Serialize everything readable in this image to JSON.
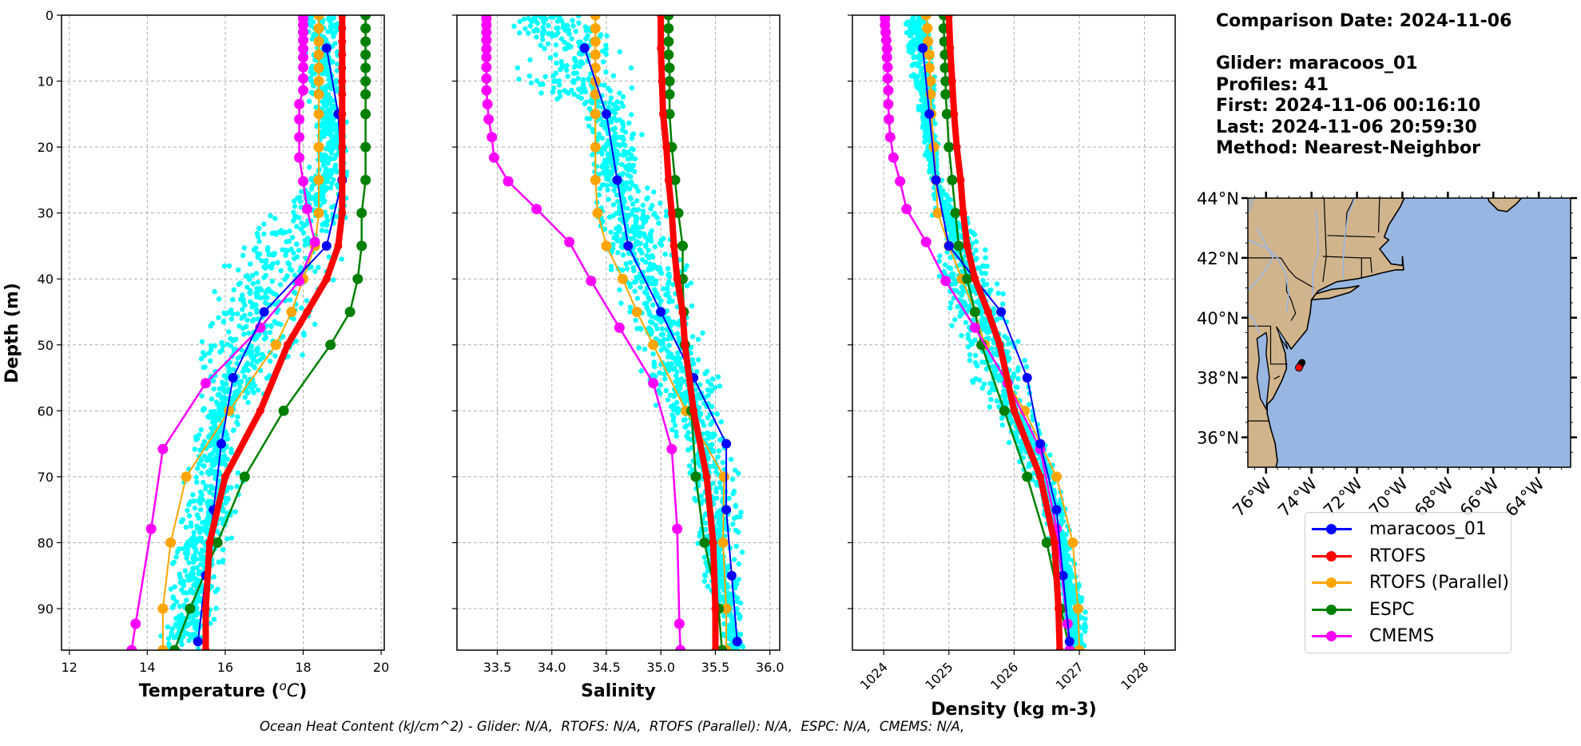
{
  "info": {
    "comparison_date": "Comparison Date: 2024-11-06",
    "glider": "Glider: maracoos_01",
    "profiles": "Profiles: 41",
    "first": "First: 2024-11-06 00:16:10",
    "last": "Last: 2024-11-06 20:59:30",
    "method": "Method: Nearest-Neighbor"
  },
  "footer": "Ocean Heat Content (kJ/cm^2) - Glider: N/A,  RTOFS: N/A,  RTOFS (Parallel): N/A,  ESPC: N/A,  CMEMS: N/A,",
  "legend": [
    {
      "label": "maracoos_01",
      "color": "#0000ff"
    },
    {
      "label": "RTOFS",
      "color": "#ff0000"
    },
    {
      "label": "RTOFS (Parallel)",
      "color": "#ffa500"
    },
    {
      "label": "ESPC",
      "color": "#008000"
    },
    {
      "label": "CMEMS",
      "color": "#ff00ff"
    }
  ],
  "colors": {
    "glider_scatter": "#00ffff",
    "land": "#d2b48c",
    "ocean": "#97b6e1",
    "grid": "#b0b0b0"
  },
  "chart_data": [
    {
      "type": "line",
      "panel": "temperature",
      "xlabel": "Temperature (°C)",
      "ylabel": "Depth (m)",
      "xlim": [
        11.8,
        20.08
      ],
      "ylim": [
        96.3,
        0
      ],
      "xticks": [
        12,
        14,
        16,
        18,
        20
      ],
      "yticks": [
        0,
        10,
        20,
        30,
        40,
        50,
        60,
        70,
        80,
        90
      ],
      "grid": true,
      "scatter_envelope": {
        "name": "glider profiles",
        "depth": [
          0,
          10,
          20,
          30,
          34,
          40,
          45,
          50,
          55,
          60,
          65,
          70,
          75,
          80,
          85,
          90,
          96
        ],
        "min": [
          17.9,
          17.9,
          18.4,
          17.2,
          15.8,
          15.4,
          15.1,
          15.1,
          15.2,
          15.2,
          15.1,
          14.9,
          14.8,
          14.6,
          14.5,
          14.3,
          14.1
        ],
        "max": [
          19.0,
          19.1,
          19.2,
          19.3,
          19.3,
          19.2,
          18.7,
          18.2,
          17.6,
          16.5,
          16.3,
          16.6,
          16.4,
          16.2,
          16.1,
          15.9,
          15.6
        ]
      },
      "series": [
        {
          "name": "maracoos_01",
          "depth": [
            5,
            15,
            25,
            35,
            45,
            55,
            65,
            75,
            85,
            95
          ],
          "values": [
            18.6,
            18.9,
            19.0,
            18.6,
            17.0,
            16.2,
            15.9,
            15.7,
            15.5,
            15.3
          ]
        },
        {
          "name": "RTOFS",
          "depth": [
            0,
            2,
            4,
            6,
            8,
            10,
            12,
            15,
            20,
            25,
            30,
            35,
            40,
            45,
            50,
            60,
            70,
            80,
            90,
            96.3
          ],
          "values": [
            19.0,
            19.0,
            19.0,
            19.0,
            19.0,
            19.0,
            19.0,
            19.0,
            19.0,
            19.0,
            19.0,
            18.9,
            18.6,
            18.1,
            17.6,
            16.9,
            16.0,
            15.6,
            15.5,
            15.5
          ]
        },
        {
          "name": "RTOFS (Parallel)",
          "depth": [
            0,
            2,
            4,
            6,
            8,
            10,
            12,
            15,
            20,
            25,
            30,
            35,
            40,
            45,
            50,
            60,
            70,
            80,
            90,
            96.3
          ],
          "values": [
            18.4,
            18.4,
            18.4,
            18.4,
            18.4,
            18.4,
            18.4,
            18.4,
            18.4,
            18.4,
            18.4,
            18.3,
            18.0,
            17.7,
            17.3,
            16.1,
            15.0,
            14.6,
            14.4,
            14.4
          ]
        },
        {
          "name": "ESPC",
          "depth": [
            0,
            2,
            4,
            6,
            8,
            10,
            12,
            15,
            20,
            25,
            30,
            35,
            40,
            45,
            50,
            60,
            70,
            80,
            90,
            96.3
          ],
          "values": [
            19.6,
            19.6,
            19.6,
            19.6,
            19.6,
            19.6,
            19.6,
            19.6,
            19.6,
            19.6,
            19.5,
            19.5,
            19.4,
            19.2,
            18.7,
            17.5,
            16.5,
            15.8,
            15.1,
            14.7
          ]
        },
        {
          "name": "CMEMS",
          "depth": [
            0,
            0.5,
            1.5,
            2.6,
            3.8,
            5.1,
            6.4,
            7.9,
            9.6,
            11.4,
            13.5,
            15.8,
            18.5,
            21.6,
            25.2,
            29.4,
            34.4,
            40.3,
            47.4,
            55.8,
            65.8,
            77.9,
            92.3,
            96.3
          ],
          "values": [
            18.0,
            18.0,
            18.0,
            18.0,
            18.0,
            18.0,
            18.0,
            18.0,
            18.0,
            18.0,
            17.9,
            17.9,
            17.9,
            17.9,
            18.0,
            18.1,
            18.3,
            17.9,
            16.9,
            15.5,
            14.4,
            14.1,
            13.7,
            13.6
          ]
        }
      ]
    },
    {
      "type": "line",
      "panel": "salinity",
      "xlabel": "Salinity",
      "ylabel": "",
      "xlim": [
        33.13,
        36.09
      ],
      "ylim": [
        96.3,
        0
      ],
      "xticks": [
        33.5,
        34.0,
        34.5,
        35.0,
        35.5,
        36.0
      ],
      "xtick_labels": [
        "33.5",
        "34.0",
        "34.5",
        "35.0",
        "35.5",
        "36.0"
      ],
      "yticks": [
        0,
        10,
        20,
        30,
        40,
        50,
        60,
        70,
        80,
        90
      ],
      "grid": true,
      "scatter_envelope": {
        "name": "glider profiles",
        "depth": [
          0,
          5,
          10,
          15,
          20,
          25,
          30,
          35,
          40,
          45,
          50,
          55,
          60,
          65,
          70,
          75,
          80,
          85,
          90,
          96
        ],
        "min": [
          33.5,
          33.5,
          33.6,
          34.2,
          34.3,
          34.3,
          34.3,
          34.4,
          34.5,
          34.6,
          34.7,
          34.8,
          34.95,
          35.1,
          35.2,
          35.3,
          35.3,
          35.35,
          35.5,
          35.6
        ],
        "max": [
          34.5,
          34.8,
          34.8,
          34.85,
          34.85,
          34.9,
          35.1,
          35.2,
          35.3,
          35.4,
          35.5,
          35.55,
          35.6,
          35.65,
          35.75,
          35.75,
          35.75,
          35.75,
          35.75,
          35.76
        ]
      },
      "series": [
        {
          "name": "maracoos_01",
          "depth": [
            5,
            15,
            25,
            35,
            45,
            55,
            65,
            75,
            85,
            95
          ],
          "values": [
            34.3,
            34.5,
            34.6,
            34.7,
            35.0,
            35.3,
            35.6,
            35.6,
            35.65,
            35.7
          ]
        },
        {
          "name": "RTOFS",
          "depth": [
            0,
            5,
            10,
            15,
            20,
            25,
            30,
            35,
            40,
            45,
            50,
            60,
            70,
            80,
            90,
            96.3
          ],
          "values": [
            35.0,
            35.0,
            35.01,
            35.02,
            35.05,
            35.07,
            35.1,
            35.12,
            35.15,
            35.2,
            35.22,
            35.3,
            35.42,
            35.48,
            35.5,
            35.5
          ]
        },
        {
          "name": "RTOFS (Parallel)",
          "depth": [
            0,
            2,
            4,
            6,
            8,
            10,
            12,
            15,
            20,
            25,
            30,
            35,
            40,
            45,
            50,
            60,
            70,
            80,
            90,
            96.3
          ],
          "values": [
            34.4,
            34.4,
            34.4,
            34.4,
            34.4,
            34.4,
            34.4,
            34.4,
            34.4,
            34.4,
            34.42,
            34.5,
            34.65,
            34.78,
            34.93,
            35.23,
            35.58,
            35.57,
            35.6,
            35.6
          ]
        },
        {
          "name": "ESPC",
          "depth": [
            0,
            2,
            4,
            6,
            8,
            10,
            12,
            15,
            20,
            25,
            30,
            35,
            40,
            45,
            50,
            60,
            70,
            80,
            90,
            96.3
          ],
          "values": [
            35.07,
            35.07,
            35.07,
            35.07,
            35.08,
            35.08,
            35.08,
            35.08,
            35.1,
            35.13,
            35.16,
            35.2,
            35.2,
            35.21,
            35.22,
            35.28,
            35.32,
            35.4,
            35.53,
            35.56
          ]
        },
        {
          "name": "CMEMS",
          "depth": [
            0,
            0.5,
            1.5,
            2.6,
            3.8,
            5.1,
            6.4,
            7.9,
            9.6,
            11.4,
            13.5,
            15.8,
            18.5,
            21.6,
            25.2,
            29.4,
            34.4,
            40.3,
            47.4,
            55.8,
            65.8,
            77.9,
            92.3,
            96.3
          ],
          "values": [
            33.4,
            33.4,
            33.4,
            33.4,
            33.4,
            33.4,
            33.4,
            33.4,
            33.4,
            33.4,
            33.41,
            33.42,
            33.45,
            33.47,
            33.6,
            33.86,
            34.16,
            34.36,
            34.62,
            34.93,
            35.1,
            35.15,
            35.17,
            35.18
          ]
        }
      ]
    },
    {
      "type": "line",
      "panel": "density",
      "xlabel": "Density (kg m-3)",
      "ylabel": "",
      "xlim": [
        1023.52,
        1028.47
      ],
      "ylim": [
        96.3,
        0
      ],
      "xticks": [
        1024,
        1025,
        1026,
        1027,
        1028
      ],
      "yticks": [
        0,
        10,
        20,
        30,
        40,
        50,
        60,
        70,
        80,
        90
      ],
      "grid": true,
      "scatter_envelope": {
        "name": "glider profiles",
        "depth": [
          0,
          5,
          10,
          15,
          20,
          25,
          30,
          35,
          40,
          45,
          50,
          55,
          60,
          65,
          70,
          75,
          80,
          85,
          90,
          96
        ],
        "min": [
          1024.3,
          1024.3,
          1024.4,
          1024.5,
          1024.6,
          1024.7,
          1024.7,
          1024.75,
          1024.8,
          1024.9,
          1025.1,
          1025.3,
          1025.6,
          1025.9,
          1026.2,
          1026.4,
          1026.5,
          1026.6,
          1026.7,
          1026.8
        ],
        "max": [
          1024.7,
          1024.8,
          1024.8,
          1024.8,
          1024.85,
          1024.9,
          1025.3,
          1025.6,
          1025.8,
          1026.0,
          1026.2,
          1026.3,
          1026.45,
          1026.55,
          1026.7,
          1026.8,
          1026.9,
          1027.0,
          1027.1,
          1027.15
        ]
      },
      "series": [
        {
          "name": "maracoos_01",
          "depth": [
            5,
            15,
            25,
            35,
            45,
            55,
            65,
            75,
            85,
            95
          ],
          "values": [
            1024.6,
            1024.7,
            1024.8,
            1025.0,
            1025.8,
            1026.2,
            1026.4,
            1026.65,
            1026.75,
            1026.85
          ]
        },
        {
          "name": "RTOFS",
          "depth": [
            0,
            5,
            10,
            15,
            20,
            25,
            30,
            35,
            40,
            45,
            50,
            60,
            70,
            80,
            90,
            96.3
          ],
          "values": [
            1025.0,
            1025.02,
            1025.05,
            1025.08,
            1025.12,
            1025.18,
            1025.22,
            1025.28,
            1025.4,
            1025.6,
            1025.78,
            1026.0,
            1026.4,
            1026.62,
            1026.68,
            1026.7
          ]
        },
        {
          "name": "RTOFS (Parallel)",
          "depth": [
            0,
            2,
            4,
            6,
            8,
            10,
            12,
            15,
            20,
            25,
            30,
            35,
            40,
            45,
            50,
            60,
            70,
            80,
            90,
            96.3
          ],
          "values": [
            1024.65,
            1024.67,
            1024.68,
            1024.7,
            1024.7,
            1024.72,
            1024.72,
            1024.73,
            1024.77,
            1024.8,
            1024.83,
            1025.0,
            1025.2,
            1025.4,
            1025.55,
            1026.16,
            1026.65,
            1026.9,
            1026.98,
            1027.0
          ]
        },
        {
          "name": "ESPC",
          "depth": [
            0,
            2,
            4,
            6,
            8,
            10,
            12,
            15,
            20,
            25,
            30,
            35,
            40,
            45,
            50,
            60,
            70,
            80,
            90,
            96.3
          ],
          "values": [
            1024.92,
            1024.92,
            1024.93,
            1024.94,
            1024.94,
            1024.95,
            1024.95,
            1024.97,
            1025.0,
            1025.05,
            1025.1,
            1025.15,
            1025.28,
            1025.4,
            1025.5,
            1025.85,
            1026.2,
            1026.5,
            1026.72,
            1026.85
          ]
        },
        {
          "name": "CMEMS",
          "depth": [
            0,
            0.5,
            1.5,
            2.6,
            3.8,
            5.1,
            6.4,
            7.9,
            9.6,
            11.4,
            13.5,
            15.8,
            18.5,
            21.6,
            25.2,
            29.4,
            34.4,
            40.3,
            47.4,
            55.8,
            65.8,
            77.9,
            92.3,
            96.3
          ],
          "values": [
            1024.02,
            1024.02,
            1024.02,
            1024.03,
            1024.04,
            1024.05,
            1024.05,
            1024.06,
            1024.06,
            1024.07,
            1024.07,
            1024.08,
            1024.1,
            1024.15,
            1024.25,
            1024.35,
            1024.65,
            1024.95,
            1025.4,
            1025.9,
            1026.4,
            1026.65,
            1026.82,
            1026.85
          ]
        }
      ]
    },
    {
      "type": "map",
      "panel": "location",
      "lon_range": [
        -76.8,
        -62.6
      ],
      "lat_range": [
        35.0,
        44.0
      ],
      "lat_ticks": [
        36,
        38,
        40,
        42,
        44
      ],
      "lat_tick_labels": [
        "36°N",
        "38°N",
        "40°N",
        "42°N",
        "44°N"
      ],
      "lon_ticks": [
        -76,
        -74,
        -72,
        -70,
        -68,
        -66,
        -64
      ],
      "lon_tick_labels": [
        "76°W",
        "74°W",
        "72°W",
        "70°W",
        "68°W",
        "66°W",
        "64°W"
      ],
      "glider_track": {
        "lon": [
          -74.55,
          -74.5,
          -74.45,
          -74.42
        ],
        "lat": [
          38.33,
          38.4,
          38.47,
          38.5
        ]
      },
      "glider_last_position": {
        "lon": -74.55,
        "lat": 38.33
      }
    }
  ]
}
